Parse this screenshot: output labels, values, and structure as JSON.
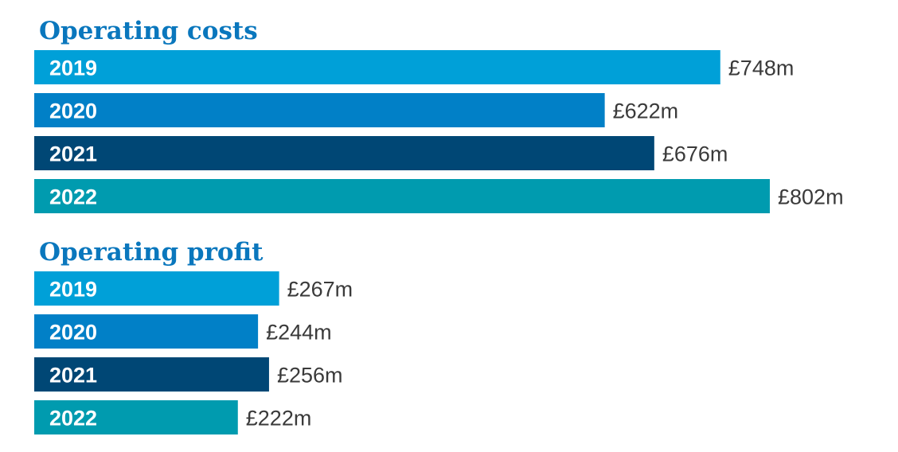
{
  "colors": {
    "title": "#0a77bd",
    "value_text": "#3a3a3a",
    "category_text": "#ffffff",
    "2019": "#00a0d8",
    "2020": "#0180c7",
    "2021": "#004775",
    "2022": "#009baf"
  },
  "chart_data": [
    {
      "type": "bar",
      "orientation": "horizontal",
      "title": "Operating costs",
      "unit_prefix": "£",
      "unit_suffix": "m",
      "categories": [
        "2019",
        "2020",
        "2021",
        "2022"
      ],
      "values": [
        748,
        622,
        676,
        802
      ],
      "value_labels": [
        "£748m",
        "£622m",
        "£676m",
        "£802m"
      ],
      "grid": false,
      "legend": "none"
    },
    {
      "type": "bar",
      "orientation": "horizontal",
      "title": "Operating profit",
      "unit_prefix": "£",
      "unit_suffix": "m",
      "categories": [
        "2019",
        "2020",
        "2021",
        "2022"
      ],
      "values": [
        267,
        244,
        256,
        222
      ],
      "value_labels": [
        "£267m",
        "£244m",
        "£256m",
        "£222m"
      ],
      "grid": false,
      "legend": "none"
    }
  ]
}
